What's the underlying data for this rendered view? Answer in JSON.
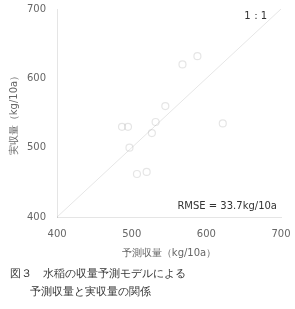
{
  "chart_data": {
    "type": "scatter",
    "title": "図３　水稲の収量予測モデルによる",
    "subtitle": "予測収量と実収量の関係",
    "x_label": "予測収量（kg/10a）",
    "y_label": "実収量（kg/10a）",
    "x": [
      487,
      495,
      497,
      507,
      520,
      527,
      532,
      545,
      568,
      588,
      622
    ],
    "values": [
      530,
      530,
      500,
      462,
      465,
      521,
      537,
      560,
      620,
      632,
      535
    ],
    "xlim": [
      400,
      700
    ],
    "ylim": [
      400,
      700
    ],
    "xticks": [
      400,
      500,
      600,
      700
    ],
    "yticks": [
      400,
      500,
      600,
      700
    ],
    "annotations": [
      "1：1",
      "RMSE = 33.7kg/10a"
    ],
    "marker": "circle",
    "grid": false
  }
}
